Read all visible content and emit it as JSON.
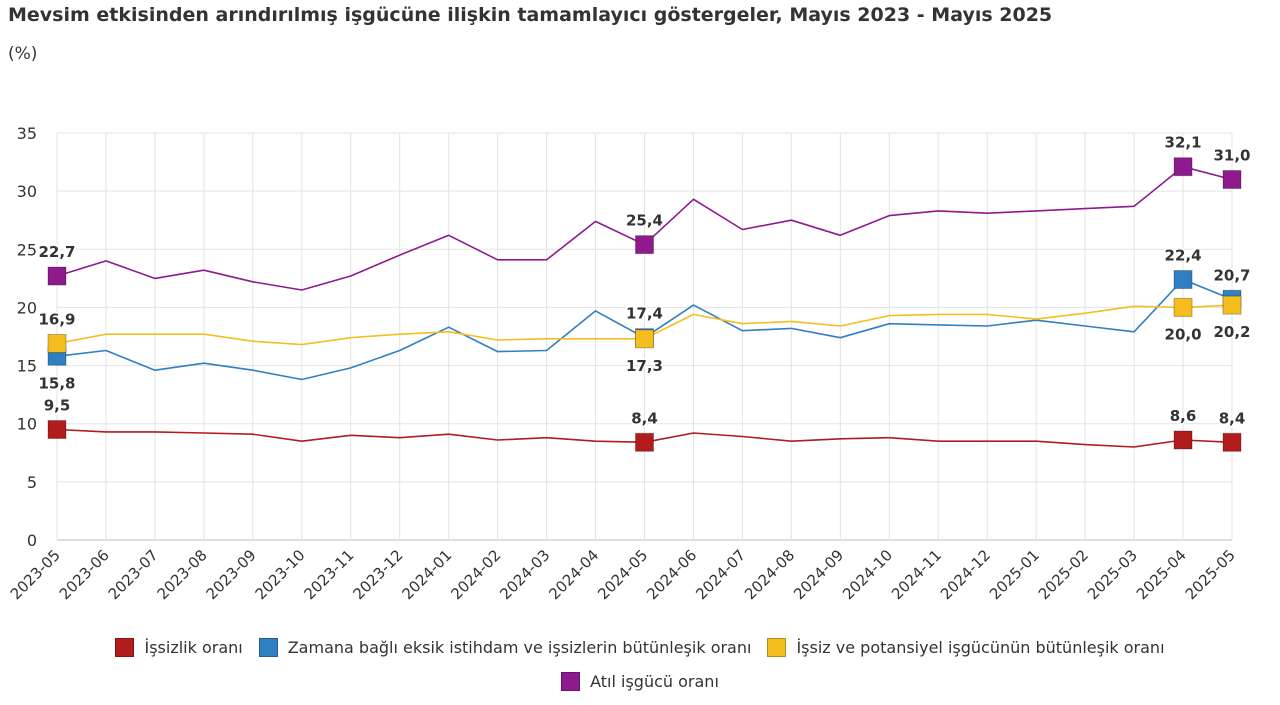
{
  "colors": {
    "issizlik": "#b21c1c",
    "zamana": "#2f7fc2",
    "issiz_potansiyel": "#f5be1e",
    "atil": "#8e1a8e"
  },
  "chart_data": {
    "type": "line",
    "title": "Mevsim etkisinden arındırılmış işgücüne ilişkin tamamlayıcı göstergeler, Mayıs 2023 - Mayıs 2025",
    "subtitle": "(%)",
    "xlabel": "",
    "ylabel": "",
    "ylim": [
      0,
      35
    ],
    "yticks": [
      "0",
      "5",
      "10",
      "15",
      "20",
      "25",
      "30",
      "35"
    ],
    "grid": true,
    "legend_position": "bottom",
    "categories": [
      "2023-05",
      "2023-06",
      "2023-07",
      "2023-08",
      "2023-09",
      "2023-10",
      "2023-11",
      "2023-12",
      "2024-01",
      "2024-02",
      "2024-03",
      "2024-04",
      "2024-05",
      "2024-06",
      "2024-07",
      "2024-08",
      "2024-09",
      "2024-10",
      "2024-11",
      "2024-12",
      "2025-01",
      "2025-02",
      "2025-03",
      "2025-04",
      "2025-05"
    ],
    "series": [
      {
        "key": "issizlik",
        "name": "İşsizlik oranı",
        "color": "#b21c1c",
        "values": [
          9.5,
          9.3,
          9.3,
          9.2,
          9.1,
          8.5,
          9.0,
          8.8,
          9.1,
          8.6,
          8.8,
          8.5,
          8.4,
          9.2,
          8.9,
          8.5,
          8.7,
          8.8,
          8.5,
          8.5,
          8.5,
          8.2,
          8.0,
          8.6,
          8.4
        ],
        "markers": [
          {
            "index": 0,
            "label": "9,5",
            "pos": "above"
          },
          {
            "index": 12,
            "label": "8,4",
            "pos": "above"
          },
          {
            "index": 23,
            "label": "8,6",
            "pos": "above"
          },
          {
            "index": 24,
            "label": "8,4",
            "pos": "above"
          }
        ]
      },
      {
        "key": "zamana",
        "name": "Zamana bağlı eksik istihdam ve işsizlerin bütünleşik oranı",
        "color": "#2f7fc2",
        "values": [
          15.8,
          16.3,
          14.6,
          15.2,
          14.6,
          13.8,
          14.8,
          16.3,
          18.3,
          16.2,
          16.3,
          19.7,
          17.4,
          20.2,
          18.0,
          18.2,
          17.4,
          18.6,
          18.5,
          18.4,
          18.9,
          18.4,
          17.9,
          22.4,
          20.7
        ],
        "markers": [
          {
            "index": 0,
            "label": "15,8",
            "pos": "below"
          },
          {
            "index": 12,
            "label": "17,4",
            "pos": "above"
          },
          {
            "index": 23,
            "label": "22,4",
            "pos": "above"
          },
          {
            "index": 24,
            "label": "20,7",
            "pos": "above"
          }
        ]
      },
      {
        "key": "issiz_potansiyel",
        "name": "İşsiz ve potansiyel işgücünün bütünleşik oranı",
        "color": "#f5be1e",
        "values": [
          16.9,
          17.7,
          17.7,
          17.7,
          17.1,
          16.8,
          17.4,
          17.7,
          17.9,
          17.2,
          17.3,
          17.3,
          17.3,
          19.4,
          18.6,
          18.8,
          18.4,
          19.3,
          19.4,
          19.4,
          19.0,
          19.5,
          20.1,
          20.0,
          20.2
        ],
        "markers": [
          {
            "index": 0,
            "label": "16,9",
            "pos": "above"
          },
          {
            "index": 12,
            "label": "17,3",
            "pos": "below"
          },
          {
            "index": 23,
            "label": "20,0",
            "pos": "below"
          },
          {
            "index": 24,
            "label": "20,2",
            "pos": "below"
          }
        ]
      },
      {
        "key": "atil",
        "name": "Atıl işgücü oranı",
        "color": "#8e1a8e",
        "values": [
          22.7,
          24.0,
          22.5,
          23.2,
          22.2,
          21.5,
          22.7,
          24.5,
          26.2,
          24.1,
          24.1,
          27.4,
          25.4,
          29.3,
          26.7,
          27.5,
          26.2,
          27.9,
          28.3,
          28.1,
          28.3,
          28.5,
          28.7,
          32.1,
          31.0
        ],
        "markers": [
          {
            "index": 0,
            "label": "22,7",
            "pos": "above"
          },
          {
            "index": 12,
            "label": "25,4",
            "pos": "above"
          },
          {
            "index": 23,
            "label": "32,1",
            "pos": "above"
          },
          {
            "index": 24,
            "label": "31,0",
            "pos": "above"
          }
        ]
      }
    ]
  }
}
